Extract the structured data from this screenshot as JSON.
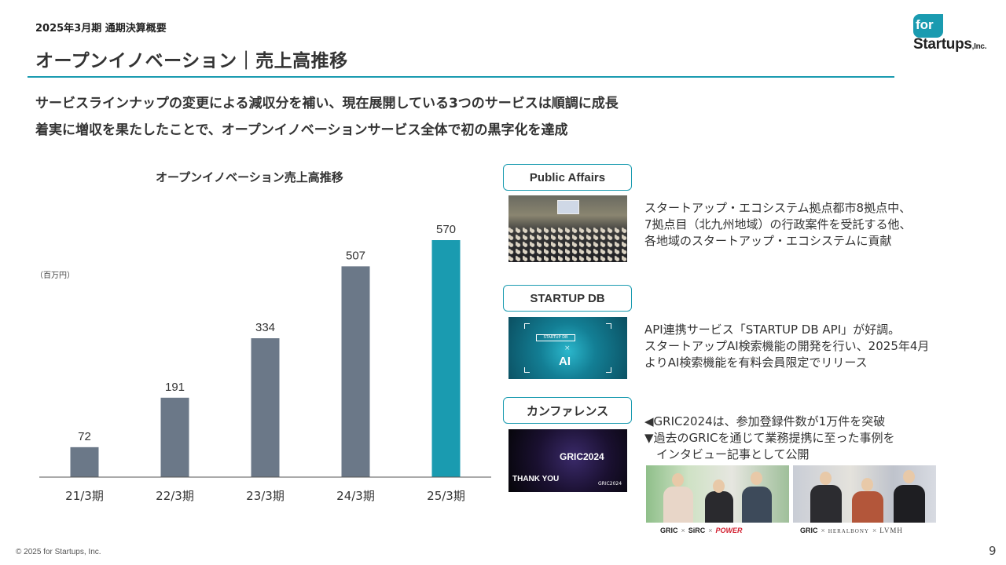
{
  "header": {
    "period": "2025年3月期 通期決算概要",
    "title": "オープンイノベーション｜売上高推移",
    "logo_for": "for",
    "logo_startups": "Startups",
    "logo_inc": ",Inc."
  },
  "lead": [
    "サービスラインナップの変更による減収分を補い、現在展開している3つのサービスは順調に成長",
    "着実に増収を果たしたことで、オープンイノベーションサービス全体で初の黒字化を達成"
  ],
  "chart_title": "オープンイノベーション売上高推移",
  "chart_unit": "（百万円）",
  "chart_data": {
    "type": "bar",
    "title": "オープンイノベーション売上高推移",
    "ylabel": "（百万円）",
    "categories": [
      "21/3期",
      "22/3期",
      "23/3期",
      "24/3期",
      "25/3期"
    ],
    "values": [
      72,
      191,
      334,
      507,
      570
    ],
    "ylim": [
      0,
      570
    ],
    "grid": false,
    "colors": [
      "#6b7888",
      "#6b7888",
      "#6b7888",
      "#6b7888",
      "#1a9bb0"
    ]
  },
  "services": [
    {
      "label": "Public Affairs",
      "text": [
        "スタートアップ・エコシステム拠点都市8拠点中、",
        "7拠点目（北九州地域）の行政案件を受託する他、",
        "各地域のスタートアップ・エコシステムに貢献"
      ]
    },
    {
      "label": "STARTUP DB",
      "image_text": {
        "box": "STARTUP DB",
        "cross": "×",
        "ai": "AI"
      },
      "text": [
        "API連携サービス「STARTUP DB API」が好調。",
        "スタートアップAI検索機能の開発を行い、2025年4月",
        "よりAI検索機能を有料会員限定でリリース"
      ]
    },
    {
      "label": "カンファレンス",
      "image_text": {
        "banner": "GRIC2024",
        "thanks": "THANK YOU",
        "corner": "GRIC2024"
      },
      "text": [
        "◀GRIC2024は、参加登録件数が1万件を突破",
        "▼過去のGRICを通じて業務提携に至った事例を",
        "　インタビュー記事として公開"
      ]
    }
  ],
  "partner_logos": {
    "left": [
      "GRIC",
      "SiRC",
      "POWER"
    ],
    "right": [
      "GRIC",
      "HERALBONY",
      "LVMH"
    ],
    "cross": "×"
  },
  "footer": {
    "copyright": "© 2025 for Startups, Inc.",
    "page": "9"
  },
  "colors": {
    "accent": "#1a9bb0",
    "bar": "#6b7888"
  }
}
